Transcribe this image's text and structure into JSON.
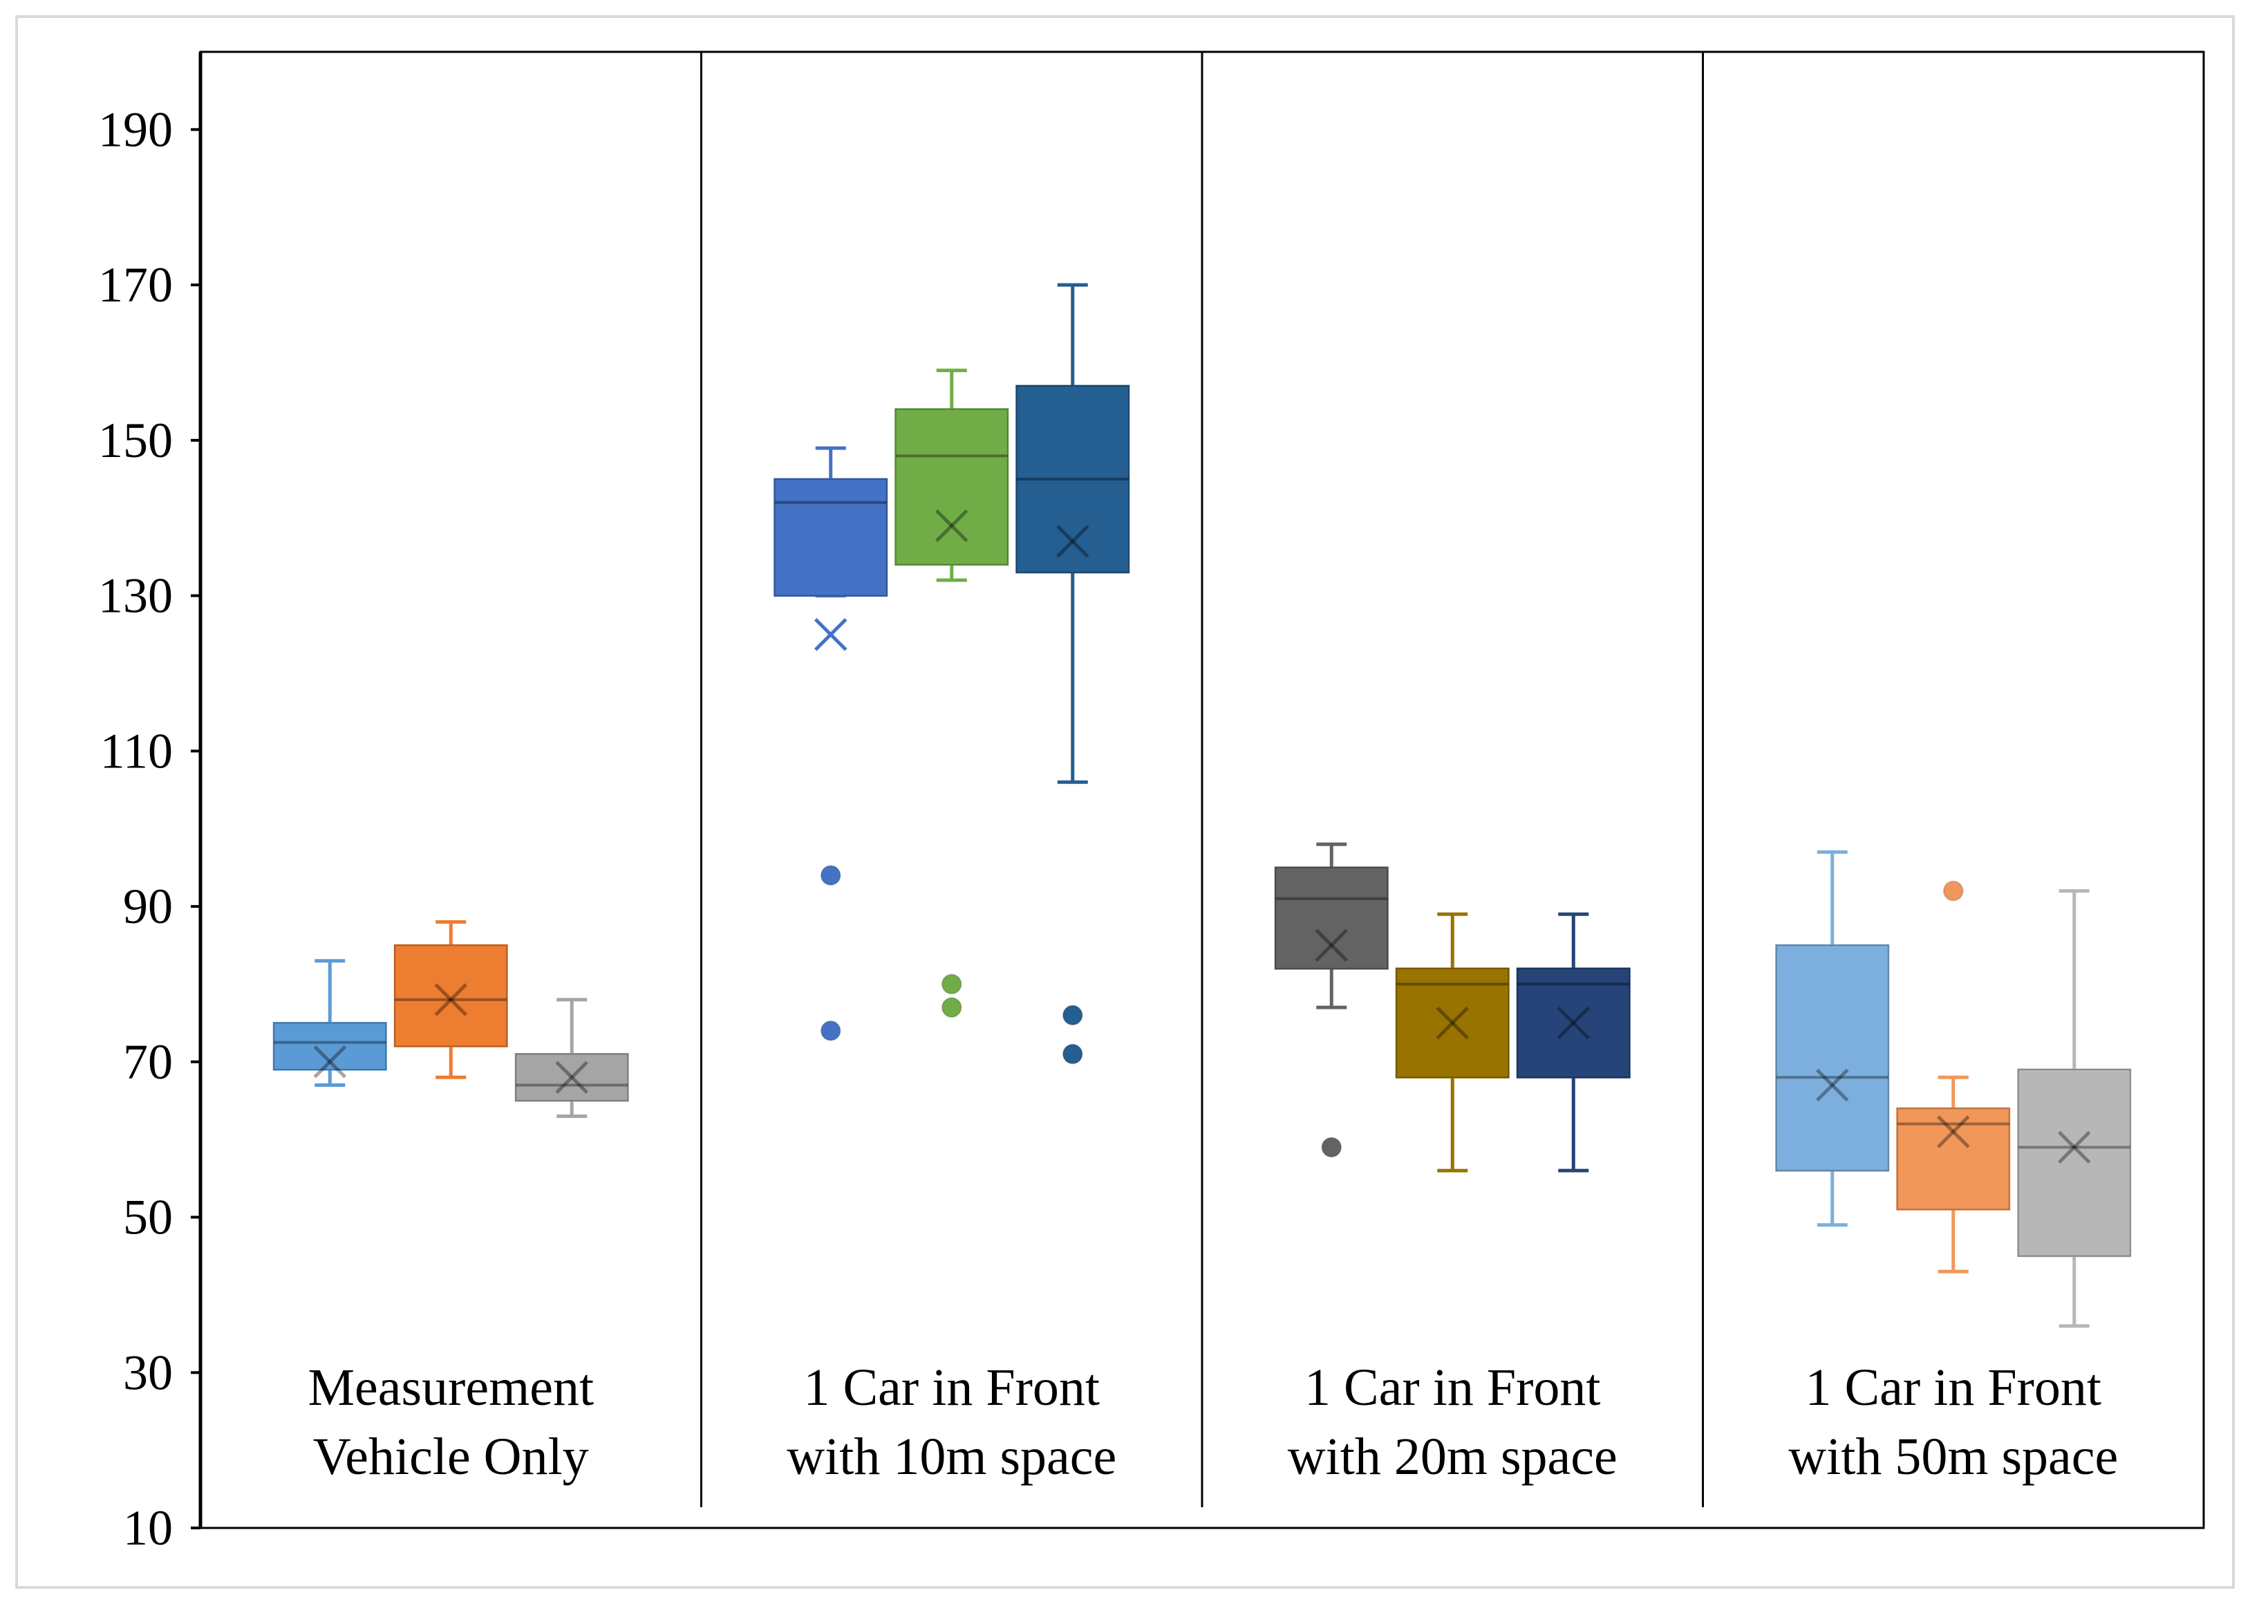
{
  "chart_data": {
    "type": "boxplot",
    "title": "",
    "xlabel": "",
    "ylabel": "",
    "ylim": [
      10,
      200
    ],
    "yticks": [
      10,
      30,
      50,
      70,
      90,
      110,
      130,
      150,
      170,
      190
    ],
    "grid": false,
    "groups": [
      {
        "label_lines": [
          "Measurement",
          "Vehicle Only"
        ],
        "boxes": [
          {
            "color": "#5b9bd5",
            "min": 67,
            "q1": 69,
            "median": 72.5,
            "q3": 75,
            "max": 83,
            "mean": 70,
            "outliers": []
          },
          {
            "color": "#ed7d31",
            "min": 68,
            "q1": 72,
            "median": 78,
            "q3": 85,
            "max": 88,
            "mean": 78,
            "outliers": []
          },
          {
            "color": "#a5a5a5",
            "min": 63,
            "q1": 65,
            "median": 67,
            "q3": 71,
            "max": 78,
            "mean": 68,
            "outliers": []
          }
        ]
      },
      {
        "label_lines": [
          "1 Car in Front",
          "with 10m space"
        ],
        "boxes": [
          {
            "color": "#4472c4",
            "min": 130,
            "q1": 130,
            "median": 142,
            "q3": 145,
            "max": 149,
            "mean": 125,
            "outliers": [
              94,
              74
            ]
          },
          {
            "color": "#70ad47",
            "min": 132,
            "q1": 134,
            "median": 148,
            "q3": 154,
            "max": 159,
            "mean": 139,
            "outliers": [
              80,
              77
            ]
          },
          {
            "color": "#255e91",
            "min": 106,
            "q1": 133,
            "median": 145,
            "q3": 157,
            "max": 170,
            "mean": 137,
            "outliers": [
              76,
              71
            ]
          }
        ]
      },
      {
        "label_lines": [
          "1 Car in Front",
          "with 20m space"
        ],
        "boxes": [
          {
            "color": "#636363",
            "min": 77,
            "q1": 82,
            "median": 91,
            "q3": 95,
            "max": 98,
            "mean": 85,
            "outliers": [
              59
            ]
          },
          {
            "color": "#997300",
            "min": 56,
            "q1": 68,
            "median": 80,
            "q3": 82,
            "max": 89,
            "mean": 75,
            "outliers": []
          },
          {
            "color": "#264478",
            "min": 56,
            "q1": 68,
            "median": 80,
            "q3": 82,
            "max": 89,
            "mean": 75,
            "outliers": []
          }
        ]
      },
      {
        "label_lines": [
          "1 Car in Front",
          "with 50m space"
        ],
        "boxes": [
          {
            "color": "#7cafdd",
            "min": 49,
            "q1": 56,
            "median": 68,
            "q3": 85,
            "max": 97,
            "mean": 67,
            "outliers": []
          },
          {
            "color": "#f1975a",
            "min": 43,
            "q1": 51,
            "median": 62,
            "q3": 64,
            "max": 68,
            "mean": 61,
            "outliers": [
              92
            ]
          },
          {
            "color": "#b7b7b7",
            "min": 36,
            "q1": 45,
            "median": 59,
            "q3": 69,
            "max": 92,
            "mean": 59,
            "outliers": []
          }
        ]
      }
    ]
  }
}
